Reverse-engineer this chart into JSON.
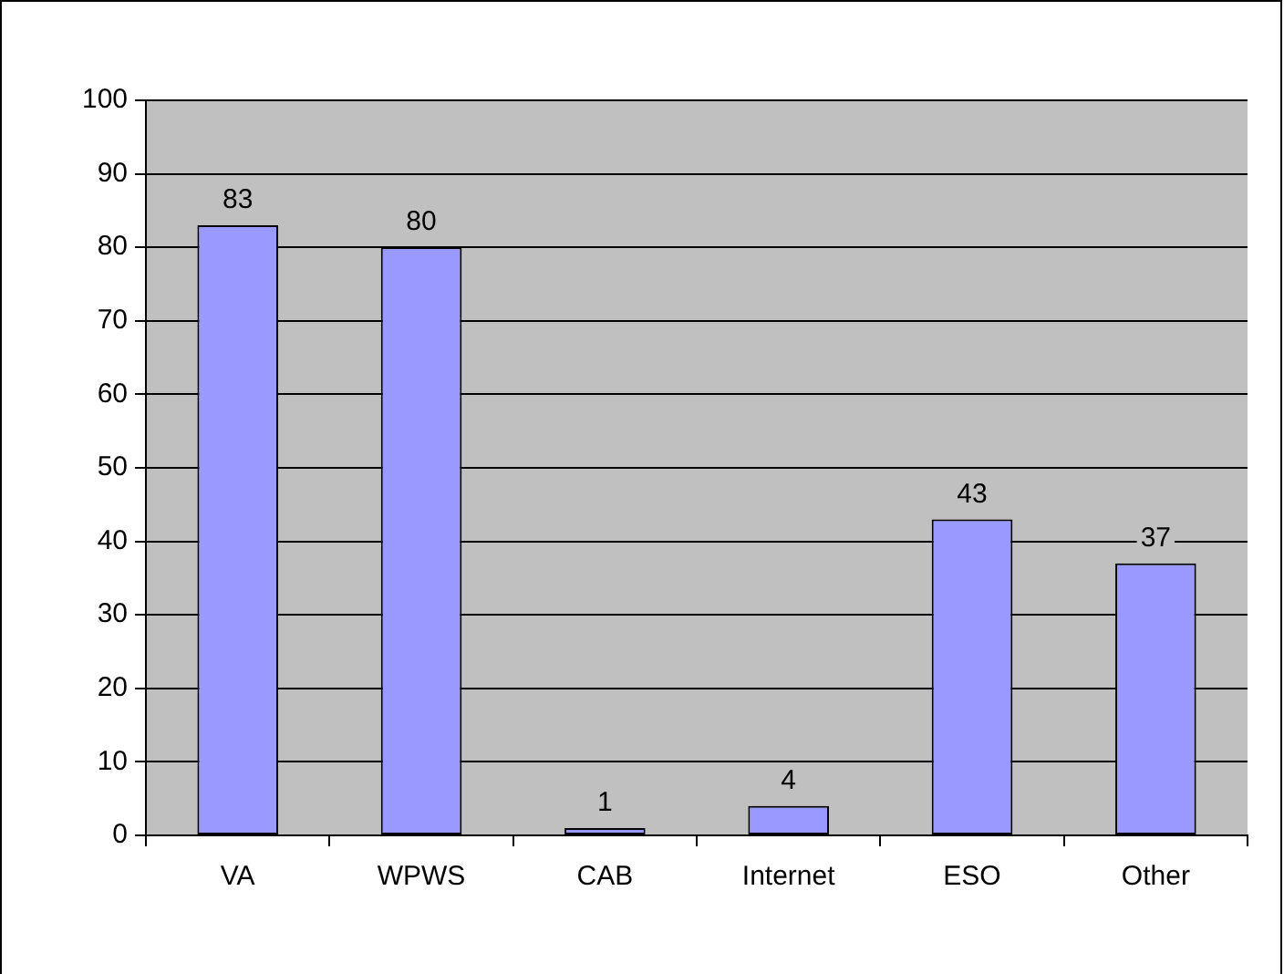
{
  "chart_data": {
    "type": "bar",
    "categories": [
      "VA",
      "WPWS",
      "CAB",
      "Internet",
      "ESO",
      "Other"
    ],
    "values": [
      83,
      80,
      1,
      4,
      43,
      37
    ],
    "color": "#9999ff",
    "ylim": [
      0,
      100
    ],
    "yticks": [
      0,
      10,
      20,
      30,
      40,
      50,
      60,
      70,
      80,
      90,
      100
    ],
    "grid": "y",
    "data_labels": true,
    "legend": false
  }
}
